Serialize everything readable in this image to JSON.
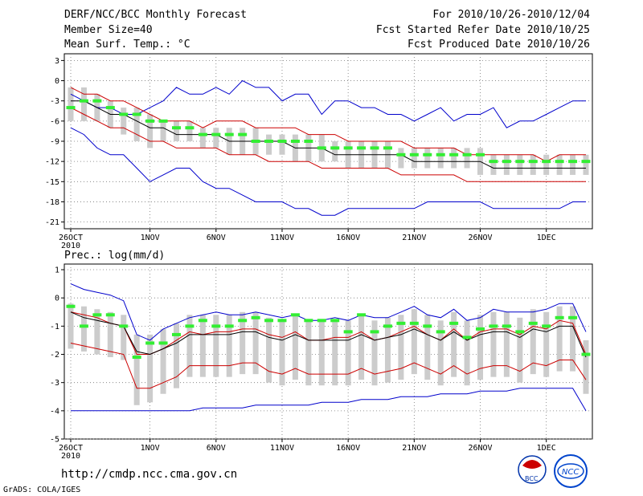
{
  "header": {
    "title": "DERF/NCC/BCC Monthly Forecast",
    "member_size": "Member Size=40",
    "forecast_period": "For 2010/10/26-2010/12/04",
    "start_date": "Fcst Started Refer Date 2010/10/25",
    "produced_date": "Fcst Produced Date 2010/10/26"
  },
  "footer": {
    "url": "http://cmdp.ncc.cma.gov.cn",
    "grads": "GrADS: COLA/IGES",
    "logo_bcc_text": "BCC",
    "logo_ncc_text": "NCC"
  },
  "colors": {
    "outer": "#0000cc",
    "inner": "#cc0000",
    "mean": "#000000",
    "box": "#cccccc",
    "marker": "#33ee33",
    "grid": "#777777"
  },
  "chart_data": [
    {
      "type": "line",
      "title": "Mean Surf. Temp.: °C",
      "x_labels": [
        "26OCT",
        "1NOV",
        "6NOV",
        "11NOV",
        "16NOV",
        "21NOV",
        "26NOV",
        "1DEC"
      ],
      "x_label_days": [
        0,
        6,
        11,
        16,
        21,
        26,
        31,
        36
      ],
      "x_year": "2010",
      "n_days": 40,
      "ylim": [
        -22,
        4
      ],
      "yticks": [
        3,
        0,
        -3,
        -6,
        -9,
        -12,
        -15,
        -18,
        -21
      ],
      "series": [
        {
          "name": "max",
          "color": "#0000cc",
          "values": [
            -2,
            -3,
            -4,
            -4,
            -5,
            -5,
            -4,
            -3,
            -1,
            -2,
            -2,
            -1,
            -2,
            0,
            -1,
            -1,
            -3,
            -2,
            -2,
            -5,
            -3,
            -3,
            -4,
            -4,
            -5,
            -5,
            -6,
            -5,
            -4,
            -6,
            -5,
            -5,
            -4,
            -7,
            -6,
            -6,
            -5,
            -4,
            -3,
            -3
          ]
        },
        {
          "name": "inner_max",
          "color": "#cc0000",
          "values": [
            -1,
            -2,
            -2,
            -3,
            -3,
            -4,
            -5,
            -6,
            -6,
            -6,
            -7,
            -6,
            -6,
            -6,
            -7,
            -7,
            -7,
            -7,
            -8,
            -8,
            -8,
            -9,
            -9,
            -9,
            -9,
            -9,
            -10,
            -10,
            -10,
            -10,
            -11,
            -11,
            -11,
            -11,
            -11,
            -11,
            -12,
            -11,
            -11,
            -11
          ]
        },
        {
          "name": "mean",
          "color": "#000000",
          "values": [
            -3,
            -3,
            -4,
            -5,
            -5,
            -6,
            -7,
            -7,
            -8,
            -8,
            -8,
            -8,
            -9,
            -9,
            -9,
            -9,
            -9,
            -10,
            -10,
            -10,
            -11,
            -11,
            -11,
            -11,
            -11,
            -11,
            -12,
            -12,
            -12,
            -12,
            -12,
            -12,
            -13,
            -13,
            -13,
            -13,
            -13,
            -13,
            -13,
            -13
          ]
        },
        {
          "name": "inner_min",
          "color": "#cc0000",
          "values": [
            -4,
            -5,
            -6,
            -7,
            -7,
            -8,
            -9,
            -9,
            -10,
            -10,
            -10,
            -10,
            -11,
            -11,
            -11,
            -12,
            -12,
            -12,
            -12,
            -13,
            -13,
            -13,
            -13,
            -13,
            -13,
            -14,
            -14,
            -14,
            -14,
            -14,
            -15,
            -15,
            -15,
            -15,
            -15,
            -15,
            -15,
            -15,
            -15,
            -15
          ]
        },
        {
          "name": "min",
          "color": "#0000cc",
          "values": [
            -7,
            -8,
            -10,
            -11,
            -11,
            -13,
            -15,
            -14,
            -13,
            -13,
            -15,
            -16,
            -16,
            -17,
            -18,
            -18,
            -18,
            -19,
            -19,
            -20,
            -20,
            -19,
            -19,
            -19,
            -19,
            -19,
            -19,
            -18,
            -18,
            -18,
            -18,
            -18,
            -19,
            -19,
            -19,
            -19,
            -19,
            -19,
            -18,
            -18
          ]
        }
      ],
      "box_low": [
        -6,
        -6,
        -6,
        -7,
        -8,
        -9,
        -10,
        -9,
        -9,
        -9,
        -10,
        -10,
        -11,
        -11,
        -11,
        -11,
        -11,
        -12,
        -12,
        -12,
        -12,
        -13,
        -13,
        -13,
        -13,
        -13,
        -13,
        -13,
        -13,
        -13,
        -13,
        -14,
        -14,
        -14,
        -14,
        -14,
        -14,
        -14,
        -14,
        -14
      ],
      "box_high": [
        -1,
        -1,
        -2,
        -3,
        -4,
        -4,
        -5,
        -6,
        -6,
        -6,
        -7,
        -7,
        -7,
        -7,
        -7,
        -8,
        -8,
        -8,
        -8,
        -8,
        -9,
        -9,
        -9,
        -9,
        -9,
        -10,
        -10,
        -10,
        -10,
        -10,
        -10,
        -10,
        -11,
        -11,
        -11,
        -11,
        -11,
        -11,
        -11,
        -11
      ],
      "markers": [
        -4,
        -3,
        -3,
        -4,
        -5,
        -5,
        -6,
        -6,
        -7,
        -7,
        -8,
        -8,
        -8,
        -8,
        -9,
        -9,
        -9,
        -9,
        -9,
        -10,
        -10,
        -10,
        -10,
        -10,
        -10,
        -11,
        -11,
        -11,
        -11,
        -11,
        -11,
        -11,
        -12,
        -12,
        -12,
        -12,
        -12,
        -12,
        -12,
        -12
      ]
    },
    {
      "type": "line",
      "title": "Prec.: log(mm/d)",
      "x_labels": [
        "26OCT",
        "1NOV",
        "6NOV",
        "11NOV",
        "16NOV",
        "21NOV",
        "26NOV",
        "1DEC"
      ],
      "x_label_days": [
        0,
        6,
        11,
        16,
        21,
        26,
        31,
        36
      ],
      "x_year": "2010",
      "n_days": 40,
      "ylim": [
        -5,
        1.2
      ],
      "yticks": [
        1,
        0,
        -1,
        -2,
        -3,
        -4,
        -5
      ],
      "series": [
        {
          "name": "max",
          "color": "#0000cc",
          "values": [
            0.5,
            0.3,
            0.2,
            0.1,
            -0.1,
            -1.3,
            -1.5,
            -1.1,
            -0.9,
            -0.7,
            -0.6,
            -0.5,
            -0.6,
            -0.6,
            -0.5,
            -0.6,
            -0.7,
            -0.6,
            -0.8,
            -0.8,
            -0.7,
            -0.8,
            -0.6,
            -0.7,
            -0.7,
            -0.5,
            -0.3,
            -0.6,
            -0.7,
            -0.4,
            -0.8,
            -0.7,
            -0.4,
            -0.5,
            -0.5,
            -0.5,
            -0.4,
            -0.2,
            -0.2,
            -1.2
          ]
        },
        {
          "name": "inner_max",
          "color": "#cc0000",
          "values": [
            -0.5,
            -0.6,
            -0.7,
            -0.9,
            -1.0,
            -2.0,
            -2.0,
            -1.8,
            -1.5,
            -1.2,
            -1.3,
            -1.2,
            -1.2,
            -1.1,
            -1.1,
            -1.3,
            -1.4,
            -1.2,
            -1.5,
            -1.5,
            -1.4,
            -1.4,
            -1.2,
            -1.5,
            -1.4,
            -1.2,
            -1.0,
            -1.3,
            -1.5,
            -1.1,
            -1.5,
            -1.2,
            -1.1,
            -1.1,
            -1.3,
            -1.0,
            -1.1,
            -0.8,
            -0.9,
            -2.0
          ]
        },
        {
          "name": "mean",
          "color": "#000000",
          "values": [
            -0.5,
            -0.7,
            -0.8,
            -0.9,
            -1.0,
            -1.9,
            -2.0,
            -1.8,
            -1.6,
            -1.3,
            -1.3,
            -1.3,
            -1.3,
            -1.2,
            -1.2,
            -1.4,
            -1.5,
            -1.3,
            -1.5,
            -1.5,
            -1.5,
            -1.5,
            -1.3,
            -1.5,
            -1.4,
            -1.3,
            -1.1,
            -1.3,
            -1.5,
            -1.2,
            -1.5,
            -1.3,
            -1.2,
            -1.2,
            -1.4,
            -1.1,
            -1.2,
            -1.0,
            -1.0,
            -2.1
          ]
        },
        {
          "name": "inner_min",
          "color": "#cc0000",
          "values": [
            -1.6,
            -1.7,
            -1.8,
            -1.9,
            -2.0,
            -3.2,
            -3.2,
            -3.0,
            -2.8,
            -2.4,
            -2.4,
            -2.4,
            -2.4,
            -2.3,
            -2.3,
            -2.6,
            -2.7,
            -2.5,
            -2.7,
            -2.7,
            -2.7,
            -2.7,
            -2.5,
            -2.7,
            -2.6,
            -2.5,
            -2.3,
            -2.5,
            -2.7,
            -2.4,
            -2.7,
            -2.5,
            -2.4,
            -2.4,
            -2.6,
            -2.3,
            -2.4,
            -2.2,
            -2.2,
            -2.9
          ]
        },
        {
          "name": "min",
          "color": "#0000cc",
          "values": [
            -4,
            -4,
            -4,
            -4,
            -4,
            -4,
            -4,
            -4,
            -4,
            -4,
            -3.9,
            -3.9,
            -3.9,
            -3.9,
            -3.8,
            -3.8,
            -3.8,
            -3.8,
            -3.8,
            -3.7,
            -3.7,
            -3.7,
            -3.6,
            -3.6,
            -3.6,
            -3.5,
            -3.5,
            -3.5,
            -3.4,
            -3.4,
            -3.4,
            -3.3,
            -3.3,
            -3.3,
            -3.2,
            -3.2,
            -3.2,
            -3.2,
            -3.2,
            -4
          ]
        }
      ],
      "box_low": [
        -1.8,
        -1.9,
        -2.0,
        -2.1,
        -2.2,
        -3.8,
        -3.7,
        -3.4,
        -3.2,
        -2.8,
        -2.8,
        -2.8,
        -2.8,
        -2.7,
        -2.7,
        -3.0,
        -3.1,
        -2.9,
        -3.1,
        -3.1,
        -3.1,
        -3.1,
        -2.9,
        -3.1,
        -3.0,
        -2.9,
        -2.7,
        -2.9,
        -3.1,
        -2.8,
        -3.1,
        -2.9,
        -2.8,
        -2.8,
        -3.0,
        -2.7,
        -2.8,
        -2.6,
        -2.6,
        -3.4
      ],
      "box_high": [
        -0.2,
        -0.3,
        -0.4,
        -0.5,
        -0.6,
        -1.3,
        -1.3,
        -1.1,
        -0.9,
        -0.6,
        -0.6,
        -0.6,
        -0.6,
        -0.5,
        -0.5,
        -0.7,
        -0.8,
        -0.6,
        -0.8,
        -0.8,
        -0.8,
        -0.8,
        -0.6,
        -0.8,
        -0.7,
        -0.6,
        -0.4,
        -0.6,
        -0.8,
        -0.5,
        -0.8,
        -0.6,
        -0.5,
        -0.5,
        -0.7,
        -0.4,
        -0.5,
        -0.3,
        -0.3,
        -1.5
      ],
      "markers": [
        -0.3,
        -1.0,
        -0.6,
        -0.6,
        -1.0,
        -2.1,
        -1.6,
        -1.6,
        -1.3,
        -1.0,
        -0.8,
        -1.0,
        -1.0,
        -0.8,
        -0.7,
        -0.8,
        -0.8,
        -0.6,
        -0.8,
        -0.8,
        -0.8,
        -1.2,
        -0.6,
        -1.2,
        -1.0,
        -0.9,
        -0.9,
        -1.0,
        -1.2,
        -0.9,
        -1.4,
        -1.1,
        -1.0,
        -1.0,
        -1.2,
        -0.9,
        -1.0,
        -0.7,
        -0.7,
        -2.0
      ]
    }
  ]
}
